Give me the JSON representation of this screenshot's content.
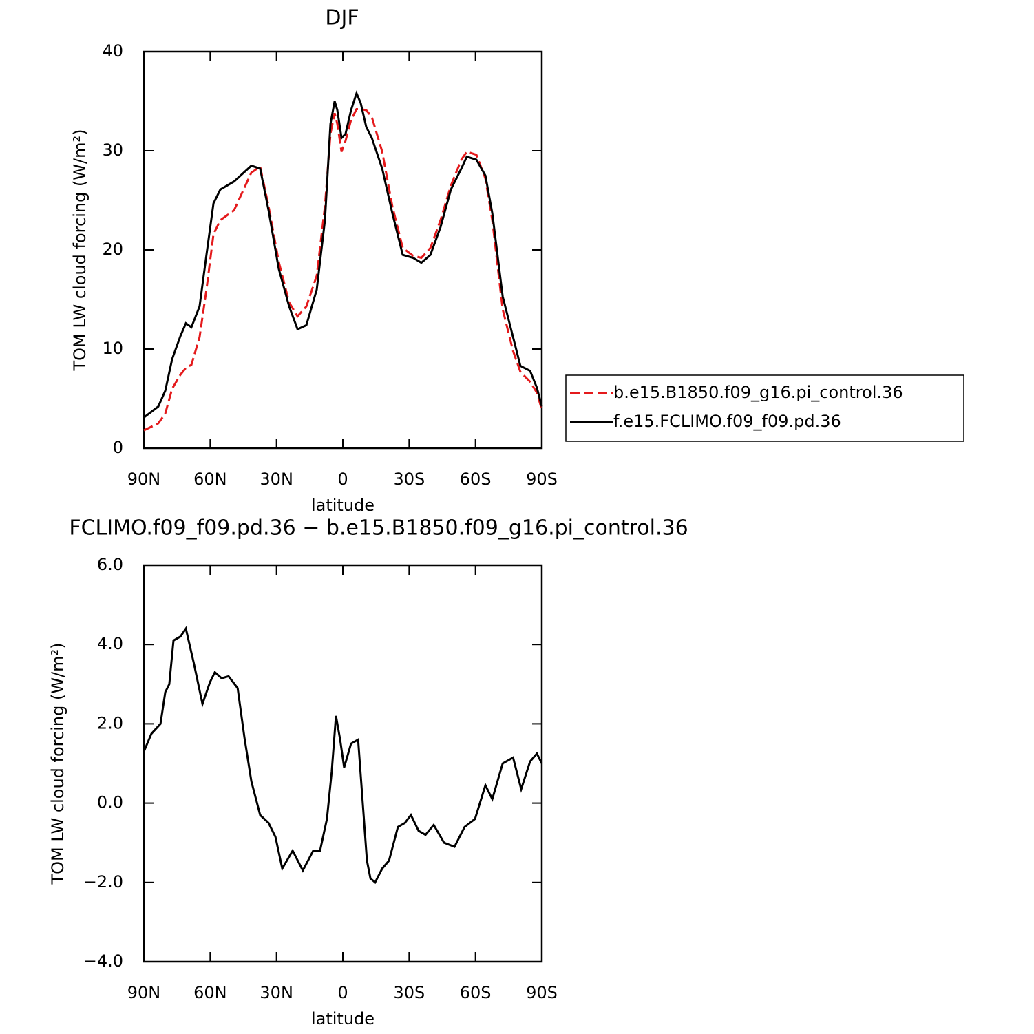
{
  "chart_data": [
    {
      "type": "line",
      "title": "DJF",
      "xlabel": "latitude",
      "ylabel": "TOM LW cloud forcing (W/m²)",
      "x": [
        90,
        83.5,
        80.3,
        77.2,
        73.5,
        71,
        68.5,
        64.8,
        61.7,
        58.5,
        55.4,
        49.2,
        41.4,
        37.4,
        33.6,
        29,
        24.3,
        20.5,
        16.5,
        11.8,
        8.1,
        5.6,
        3.7,
        2.5,
        0.6,
        -1.2,
        -3.7,
        -6.2,
        -8.1,
        -10.6,
        -13.1,
        -17.8,
        -22.4,
        -27.1,
        -31.8,
        -35.5,
        -39.6,
        -44.2,
        -48.9,
        -53.6,
        -56.1,
        -60.4,
        -64.5,
        -67.6,
        -72.3,
        -77,
        -80.3,
        -84.7,
        -87.8,
        -90
      ],
      "series": [
        {
          "name": "b.e15.B1850.f09_g16.pi_control.36",
          "color": "#e41a1c",
          "line_style": "dashed",
          "values": [
            1.8,
            2.5,
            3.5,
            6.0,
            7.4,
            8.1,
            8.4,
            11.2,
            16.0,
            21.6,
            23.0,
            24.0,
            27.8,
            28.4,
            24.4,
            18.8,
            14.7,
            13.3,
            14.3,
            17.4,
            24.4,
            31.7,
            33.8,
            32.7,
            29.9,
            31.0,
            33.1,
            34.2,
            34.2,
            34.1,
            33.4,
            29.9,
            24.4,
            20.2,
            19.4,
            19.2,
            20.2,
            23.0,
            26.5,
            29.1,
            29.9,
            29.6,
            27.2,
            23.0,
            14.0,
            9.8,
            7.7,
            6.7,
            5.6,
            3.9
          ]
        },
        {
          "name": "f.e15.FCLIMO.f09_f09.pd.36",
          "color": "#000000",
          "line_style": "solid",
          "values": [
            3.1,
            4.2,
            5.8,
            9.0,
            11.3,
            12.6,
            12.2,
            14.3,
            19.5,
            24.7,
            26.1,
            26.9,
            28.5,
            28.2,
            24.0,
            18.1,
            14.3,
            12.0,
            12.4,
            16.0,
            23.0,
            32.7,
            35.0,
            34.1,
            31.3,
            31.7,
            34.1,
            35.8,
            34.8,
            32.4,
            31.3,
            28.2,
            23.7,
            19.5,
            19.2,
            18.7,
            19.5,
            22.3,
            26.1,
            28.2,
            29.4,
            29.1,
            27.5,
            23.7,
            15.3,
            11.2,
            8.3,
            7.8,
            6.1,
            4.2
          ]
        }
      ],
      "xlim": [
        90,
        -90
      ],
      "xticks": [
        {
          "value": 90,
          "label": "90N"
        },
        {
          "value": 60,
          "label": "60N"
        },
        {
          "value": 30,
          "label": "30N"
        },
        0,
        {
          "value": -30,
          "label": "30S"
        },
        {
          "value": -60,
          "label": "60S"
        },
        {
          "value": -90,
          "label": "90S"
        }
      ],
      "ylim": [
        0,
        40
      ],
      "yticks": [
        0,
        10,
        20,
        30,
        40
      ],
      "legend": "right"
    },
    {
      "type": "line",
      "title": "FCLIMO.f09_f09.pd.36 − b.e15.B1850.f09_g16.pi_control.36",
      "xlabel": "latitude",
      "ylabel": "TOM LW cloud forcing (W/m²)",
      "x": [
        90,
        86.6,
        82.5,
        80.3,
        78.5,
        76.6,
        73.5,
        71,
        67.3,
        63.5,
        60.1,
        57.9,
        54.8,
        51.7,
        47.6,
        44.5,
        41.4,
        37.4,
        33.6,
        30.5,
        27.4,
        22.7,
        18.1,
        13.4,
        10.3,
        7.2,
        5,
        3.1,
        1.2,
        -0.6,
        -3.7,
        -6.9,
        -10.9,
        -12.5,
        -14.6,
        -17.8,
        -20.9,
        -24.9,
        -28.1,
        -30.8,
        -34.3,
        -37.4,
        -41.1,
        -45.8,
        -50.5,
        -55.1,
        -59.8,
        -64.5,
        -67.6,
        -72.3,
        -77,
        -80.7,
        -84.7,
        -87.8,
        -90
      ],
      "values": [
        1.3,
        1.75,
        2.0,
        2.8,
        3.0,
        4.1,
        4.2,
        4.4,
        3.5,
        2.5,
        3.05,
        3.3,
        3.15,
        3.2,
        2.9,
        1.65,
        0.55,
        -0.3,
        -0.5,
        -0.85,
        -1.65,
        -1.2,
        -1.7,
        -1.2,
        -1.2,
        -0.4,
        0.8,
        2.2,
        1.6,
        0.9,
        1.5,
        1.6,
        -1.45,
        -1.9,
        -2.0,
        -1.65,
        -1.45,
        -0.6,
        -0.5,
        -0.3,
        -0.7,
        -0.8,
        -0.55,
        -1.0,
        -1.1,
        -0.6,
        -0.4,
        0.45,
        0.1,
        1.0,
        1.15,
        0.35,
        1.05,
        1.25,
        1.0
      ],
      "color": "#000000",
      "xlim": [
        90,
        -90
      ],
      "xticks": [
        {
          "value": 90,
          "label": "90N"
        },
        {
          "value": 60,
          "label": "60N"
        },
        {
          "value": 30,
          "label": "30N"
        },
        0,
        {
          "value": -30,
          "label": "30S"
        },
        {
          "value": -60,
          "label": "60S"
        },
        {
          "value": -90,
          "label": "90S"
        }
      ],
      "ylim": [
        -4,
        6
      ],
      "yticks": [
        {
          "value": -4,
          "label": "−4.0"
        },
        {
          "value": -2,
          "label": "−2.0"
        },
        {
          "value": 0,
          "label": "0.0"
        },
        {
          "value": 2,
          "label": "2.0"
        },
        {
          "value": 4,
          "label": "4.0"
        },
        {
          "value": 6,
          "label": "6.0"
        }
      ]
    }
  ]
}
